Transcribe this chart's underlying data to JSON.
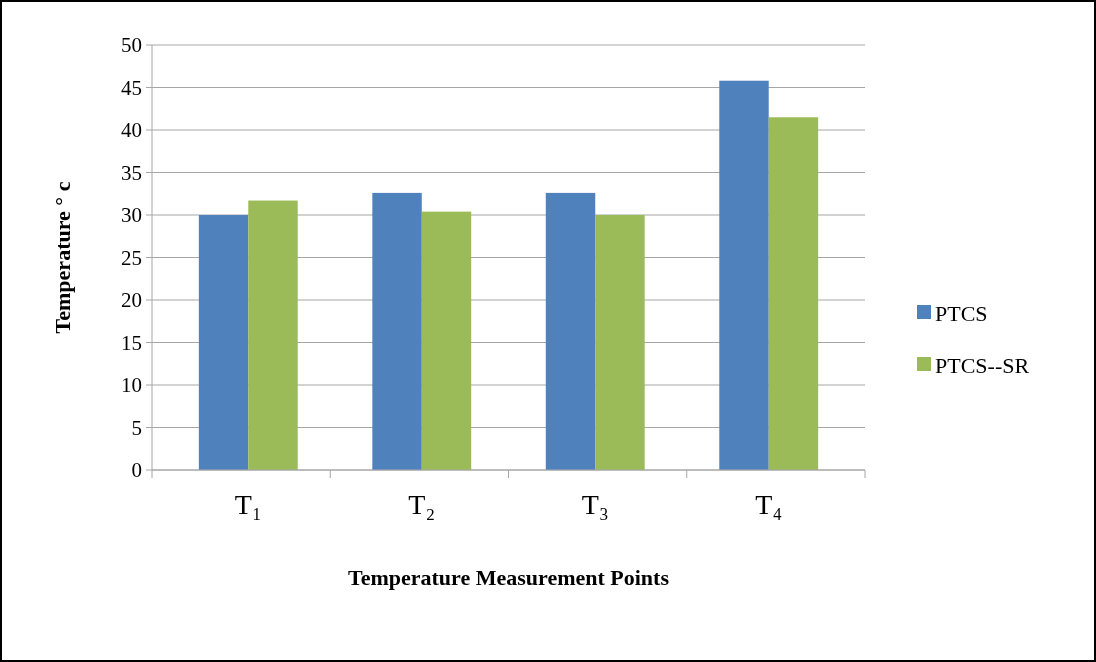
{
  "chart_data": {
    "type": "bar",
    "xlabel": "Temperature Measurement Points",
    "ylabel": "Temperature ° c",
    "categories": [
      "T₁",
      "T₂",
      "T₃",
      "T₄"
    ],
    "series": [
      {
        "name": "PTCS",
        "color": "#4f81bd",
        "values": [
          30,
          32.6,
          32.6,
          45.8
        ]
      },
      {
        "name": "PTCS--SR",
        "color": "#9bbb59",
        "values": [
          31.7,
          30.4,
          30,
          41.5
        ]
      }
    ],
    "ylim": [
      0,
      50
    ],
    "yticks": [
      0,
      5,
      10,
      15,
      20,
      25,
      30,
      35,
      40,
      45,
      50
    ],
    "grid": "y",
    "legend": "right"
  }
}
